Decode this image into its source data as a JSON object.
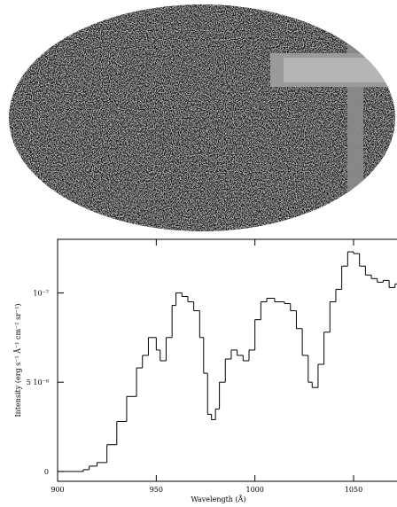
{
  "chart_data": {
    "type": "step",
    "x_label": "Wavelength (Å)",
    "y_label": "Intensity (erg s⁻¹ Å⁻¹ cm⁻² sr⁻¹)",
    "x": [
      900,
      905,
      910,
      913,
      916,
      920,
      925,
      930,
      935,
      940,
      943,
      946,
      950,
      952,
      955,
      958,
      960,
      963,
      966,
      969,
      972,
      974,
      976,
      978,
      980,
      982,
      985,
      988,
      991,
      994,
      997,
      1000,
      1003,
      1006,
      1010,
      1015,
      1018,
      1021,
      1024,
      1027,
      1029,
      1032,
      1035,
      1038,
      1041,
      1044,
      1047,
      1050,
      1053,
      1056,
      1059,
      1062,
      1065,
      1068,
      1071
    ],
    "values": [
      0,
      0,
      0,
      1e-09,
      3e-09,
      5e-09,
      1.5e-08,
      2.8e-08,
      4.2e-08,
      5.8e-08,
      6.5e-08,
      7.5e-08,
      6.8e-08,
      6.2e-08,
      7.5e-08,
      9.3e-08,
      1e-07,
      9.8e-08,
      9.5e-08,
      9e-08,
      7.5e-08,
      5.5e-08,
      3.2e-08,
      2.9e-08,
      3.5e-08,
      5e-08,
      6.3e-08,
      6.8e-08,
      6.5e-08,
      6.2e-08,
      6.8e-08,
      8.5e-08,
      9.5e-08,
      9.7e-08,
      9.5e-08,
      9.4e-08,
      9e-08,
      8e-08,
      6.5e-08,
      5e-08,
      4.7e-08,
      6e-08,
      7.8e-08,
      9.5e-08,
      1.02e-07,
      1.15e-07,
      1.23e-07,
      1.22e-07,
      1.15e-07,
      1.1e-07,
      1.08e-07,
      1.06e-07,
      1.07e-07,
      1.03e-07,
      1.05e-07
    ],
    "color": "#000000",
    "xlim": [
      900,
      1072
    ],
    "ylim": [
      -5.5e-09,
      1.3e-07
    ],
    "xticks": [
      900,
      950,
      1000,
      1050
    ],
    "yticks": [
      0,
      {
        "value": 5e-08,
        "label": "5 10⁻⁸"
      },
      {
        "value": 1e-07,
        "label": "10⁻⁷"
      }
    ]
  }
}
